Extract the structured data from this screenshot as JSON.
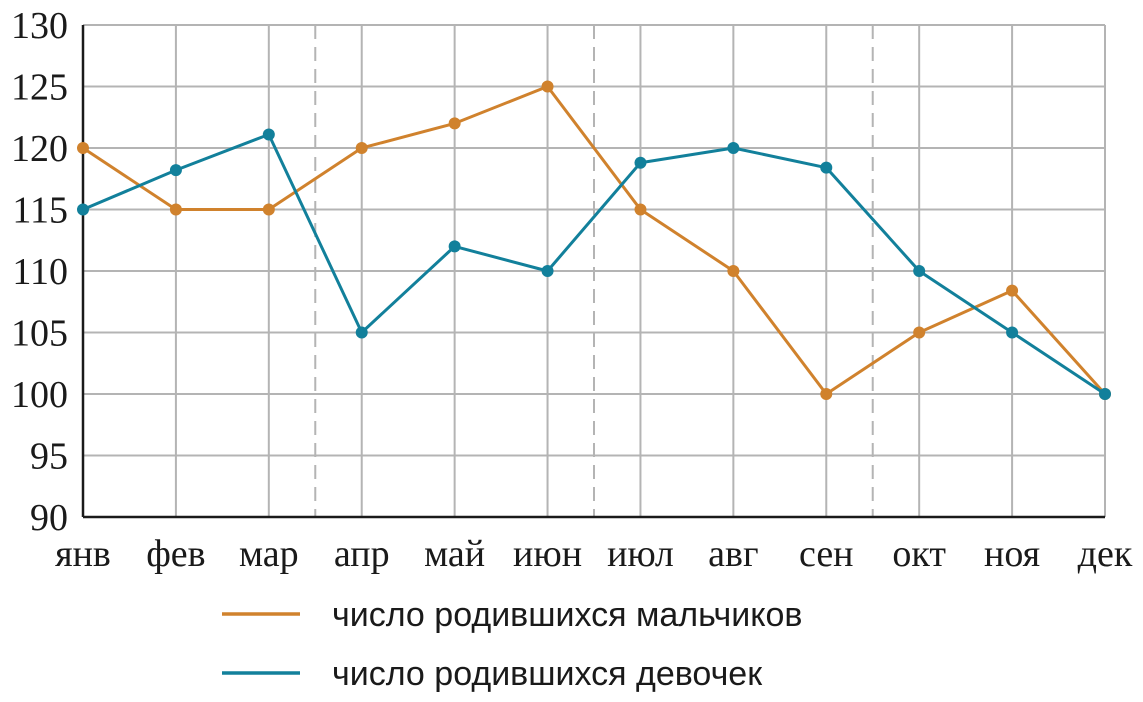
{
  "chart_data": {
    "type": "line",
    "title": "",
    "xlabel": "",
    "ylabel": "",
    "categories": [
      "янв",
      "фев",
      "мар",
      "апр",
      "май",
      "июн",
      "июл",
      "авг",
      "сен",
      "окт",
      "ноя",
      "дек"
    ],
    "ylim": [
      90,
      130
    ],
    "yticks": [
      "90",
      "95",
      "100",
      "105",
      "110",
      "115",
      "120",
      "125",
      "130"
    ],
    "grid": true,
    "quarter_separators": "dashed",
    "legend_position": "bottom",
    "series": [
      {
        "name": "число родившихся мальчиков",
        "color": "#d0822d",
        "values": [
          120,
          115,
          115,
          120,
          122,
          125,
          115,
          110,
          100,
          105,
          108.4,
          100
        ]
      },
      {
        "name": "число родившихся девочек",
        "color": "#12809b",
        "values": [
          115,
          118.2,
          121.1,
          105,
          112,
          110,
          118.8,
          120,
          118.4,
          110,
          105,
          100
        ]
      }
    ]
  }
}
